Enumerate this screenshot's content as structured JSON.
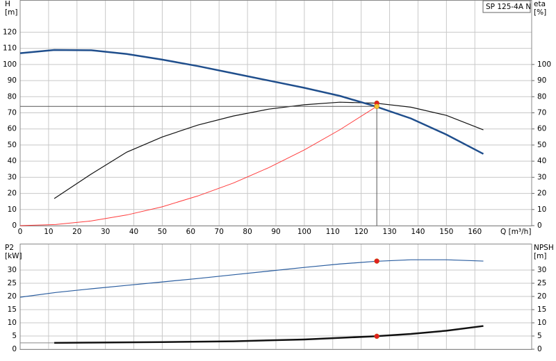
{
  "chart_data": [
    {
      "type": "line",
      "model_label": "SP 125-4A N",
      "ylabel": [
        "H",
        "[m]"
      ],
      "y2label": [
        "eta",
        "[%]"
      ],
      "xlabel": "Q [m³/h]",
      "xlim": [
        0,
        180
      ],
      "xticks": [
        0,
        10,
        20,
        30,
        40,
        50,
        60,
        70,
        80,
        90,
        100,
        110,
        120,
        130,
        140,
        150,
        160
      ],
      "ylim": [
        0,
        140
      ],
      "yticks": [
        0,
        10,
        20,
        30,
        40,
        50,
        60,
        70,
        80,
        90,
        100,
        110,
        120
      ],
      "y2lim": [
        0,
        140
      ],
      "y2ticks": [
        0,
        10,
        20,
        30,
        40,
        50,
        60,
        70,
        80,
        90,
        100
      ],
      "grid": true,
      "series": [
        {
          "color": "#ff3b3b",
          "width": 1,
          "axis": "y",
          "x": [
            0,
            12.5,
            25,
            37.5,
            50,
            62.5,
            75,
            87.5,
            100,
            112.5,
            125.5
          ],
          "values": [
            0,
            0.7,
            2.9,
            6.6,
            11.7,
            18.4,
            26.4,
            36,
            47,
            59.5,
            74
          ]
        },
        {
          "color": "#111111",
          "width": 1.2,
          "axis": "y2",
          "x": [
            12,
            25,
            37.5,
            50,
            62.5,
            75,
            87.5,
            100,
            112.5,
            125,
            137.5,
            150,
            163
          ],
          "values": [
            16.8,
            32,
            45.6,
            55,
            62.4,
            68,
            72.3,
            75,
            76.6,
            76,
            73.5,
            68.4,
            59.4
          ]
        },
        {
          "color": "#1f4e8c",
          "width": 2.5,
          "axis": "y",
          "x": [
            0,
            12,
            25,
            37.5,
            50,
            62.5,
            75,
            87.5,
            100,
            112.5,
            125,
            137.5,
            150,
            163
          ],
          "values": [
            107,
            109,
            108.8,
            106.5,
            103,
            99,
            94.5,
            90,
            85.5,
            80.5,
            74,
            66.5,
            56.5,
            44.5
          ]
        }
      ],
      "points": [
        {
          "x": 125.5,
          "y": 76,
          "axis": "y2",
          "color": "#e02020",
          "crosshair": false
        },
        {
          "x": 125.5,
          "y": 74,
          "axis": "y",
          "color": "#f2c230",
          "crosshair": true
        }
      ]
    },
    {
      "type": "line",
      "ylabel": [
        "P2",
        "[kW]"
      ],
      "y2label": [
        "NPSH",
        "[m]"
      ],
      "xlim": [
        0,
        180
      ],
      "xgrid": [
        0,
        10,
        20,
        30,
        40,
        50,
        60,
        70,
        80,
        90,
        100,
        110,
        120,
        130,
        140,
        150,
        160
      ],
      "ylim": [
        0,
        40
      ],
      "yticks": [
        0,
        5,
        10,
        15,
        20,
        25,
        30
      ],
      "y2lim": [
        0,
        40
      ],
      "y2ticks": [
        0,
        5,
        10,
        15,
        20,
        25,
        30
      ],
      "grid": true,
      "series": [
        {
          "color": "#2a5d9f",
          "width": 1.2,
          "axis": "y",
          "x": [
            0,
            12.5,
            25,
            37.5,
            50,
            62.5,
            75,
            87.5,
            100,
            112.5,
            125,
            137.5,
            150,
            163
          ],
          "values": [
            19.7,
            21.5,
            22.9,
            24.2,
            25.5,
            26.8,
            28.2,
            29.6,
            31,
            32.3,
            33.3,
            33.9,
            33.9,
            33.4
          ]
        },
        {
          "color": "#888888",
          "width": 1,
          "axis": "y2",
          "x": [
            0,
            12
          ],
          "values": [
            2.4,
            2.4
          ]
        },
        {
          "color": "#111111",
          "width": 2.5,
          "axis": "y2",
          "x": [
            12,
            25,
            50,
            75,
            100,
            125,
            137.5,
            150,
            163
          ],
          "values": [
            2.4,
            2.5,
            2.7,
            3,
            3.7,
            4.9,
            5.8,
            7,
            8.8
          ]
        }
      ],
      "points": [
        {
          "x": 125.5,
          "y": 33.4,
          "axis": "y",
          "color": "#e02020",
          "crosshair": false
        },
        {
          "x": 125.5,
          "y": 4.9,
          "axis": "y2",
          "color": "#e02020",
          "crosshair": false
        }
      ]
    }
  ]
}
